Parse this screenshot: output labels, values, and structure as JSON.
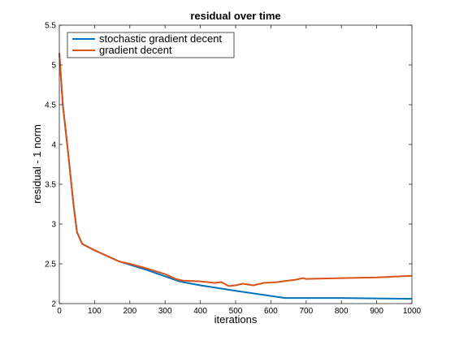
{
  "chart_data": {
    "type": "line",
    "title": "residual over time",
    "xlabel": "iterations",
    "ylabel": "residual - 1 norm",
    "xlim": [
      0,
      1000
    ],
    "ylim": [
      2,
      5.5
    ],
    "xticks": [
      0,
      100,
      200,
      300,
      400,
      500,
      600,
      700,
      800,
      900,
      1000
    ],
    "yticks": [
      2,
      2.5,
      3,
      3.5,
      4,
      4.5,
      5,
      5.5
    ],
    "ytick_labels": [
      "2",
      "2.5",
      "3",
      "3.5",
      "4",
      "4.5",
      "5",
      "5.5"
    ],
    "grid": false,
    "legend_position": "top-left",
    "series": [
      {
        "name": "stochastic gradient decent",
        "color": "#0072BD",
        "x": [
          0,
          10,
          25,
          40,
          50,
          65,
          100,
          170,
          250,
          340,
          400,
          500,
          640,
          700,
          800,
          1000
        ],
        "y": [
          5.15,
          4.5,
          3.9,
          3.25,
          2.9,
          2.75,
          2.67,
          2.53,
          2.42,
          2.28,
          2.23,
          2.16,
          2.07,
          2.07,
          2.07,
          2.06
        ]
      },
      {
        "name": "gradient decent",
        "color": "#D95319",
        "x": [
          0,
          10,
          25,
          40,
          50,
          65,
          100,
          170,
          200,
          250,
          300,
          330,
          350,
          400,
          440,
          460,
          480,
          500,
          520,
          550,
          580,
          620,
          650,
          670,
          690,
          700,
          800,
          900,
          1000
        ],
        "y": [
          5.15,
          4.5,
          3.9,
          3.25,
          2.9,
          2.75,
          2.67,
          2.53,
          2.5,
          2.44,
          2.37,
          2.31,
          2.29,
          2.28,
          2.26,
          2.27,
          2.22,
          2.23,
          2.25,
          2.23,
          2.26,
          2.27,
          2.29,
          2.3,
          2.32,
          2.31,
          2.32,
          2.33,
          2.35
        ]
      }
    ]
  }
}
